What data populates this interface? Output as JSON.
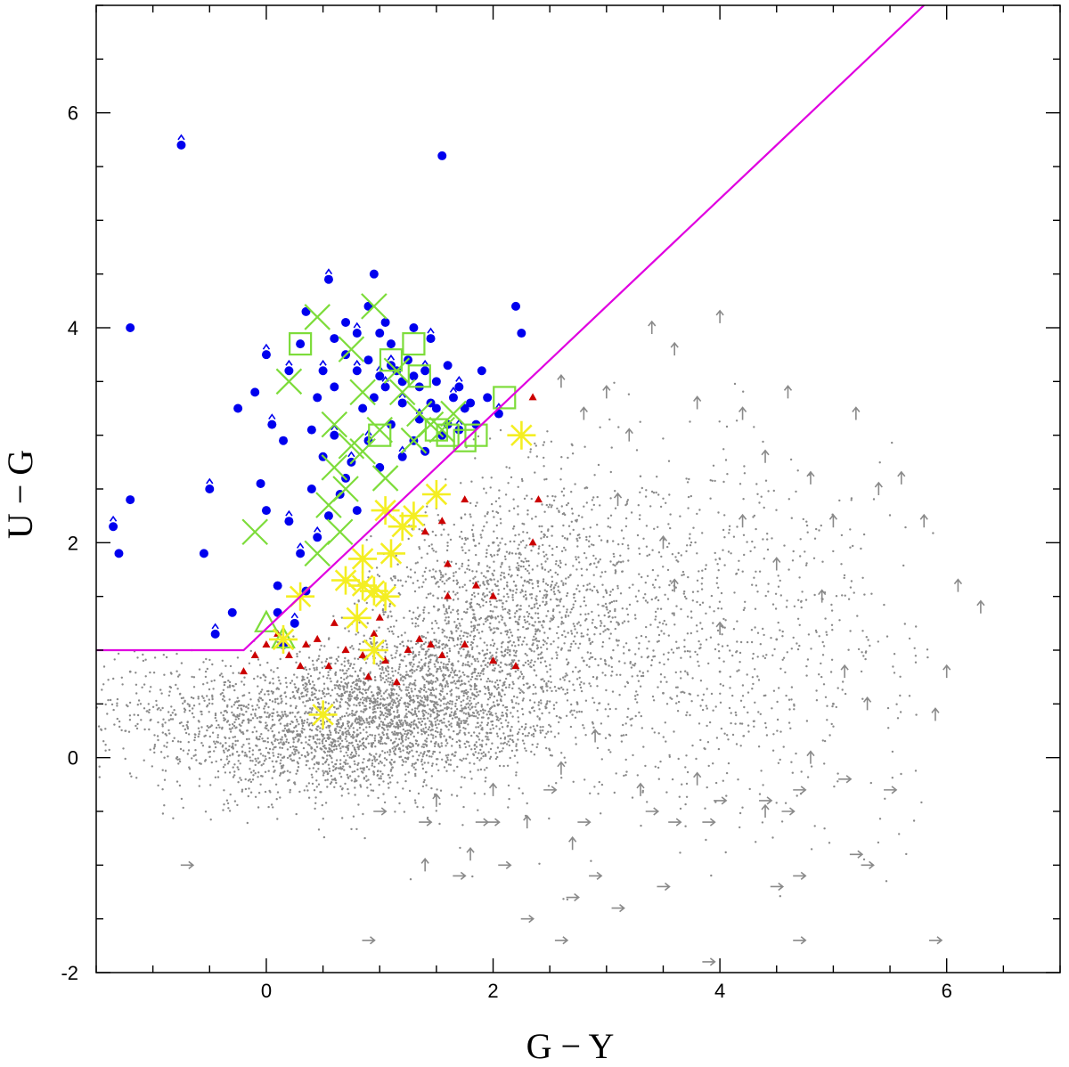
{
  "chart_data": {
    "type": "scatter",
    "xlabel": "G − Y",
    "ylabel": "U − G",
    "xlim": [
      -1.5,
      7.0
    ],
    "ylim": [
      -2.0,
      7.0
    ],
    "x_ticks": [
      0,
      2,
      4,
      6
    ],
    "y_ticks": [
      -2,
      0,
      2,
      4,
      6
    ],
    "x_tick_labels": [
      "0",
      "2",
      "4",
      "6"
    ],
    "y_tick_labels": [
      "-2",
      "0",
      "2",
      "4",
      "6"
    ],
    "x_minor_step": 0.5,
    "y_minor_step": 0.5,
    "grid": false,
    "legend": "none",
    "selection_line": {
      "color": "#e000e0",
      "points": [
        [
          -1.5,
          1.0
        ],
        [
          -0.2,
          1.0
        ],
        [
          5.8,
          7.0
        ]
      ]
    },
    "series": [
      {
        "marker": "dot",
        "color": "#8a8a8a",
        "description_points": [
          [
            -1.2,
            0.8
          ],
          [
            -0.8,
            0.4
          ],
          [
            -0.5,
            0.1
          ],
          [
            0.0,
            0.5
          ],
          [
            0.3,
            0.2
          ],
          [
            0.6,
            0.4
          ],
          [
            0.8,
            0.2
          ],
          [
            1.0,
            0.6
          ],
          [
            1.2,
            0.3
          ],
          [
            1.5,
            0.9
          ],
          [
            1.8,
            1.4
          ],
          [
            2.0,
            2.0
          ],
          [
            2.2,
            1.6
          ],
          [
            2.5,
            1.2
          ],
          [
            2.8,
            0.9
          ],
          [
            3.0,
            1.4
          ],
          [
            3.2,
            1.0
          ],
          [
            3.5,
            0.6
          ],
          [
            4.0,
            0.8
          ],
          [
            4.5,
            1.1
          ],
          [
            5.0,
            0.5
          ]
        ]
      },
      {
        "marker": "arrow-up",
        "color": "#8a8a8a",
        "points": [
          [
            2.6,
            3.5
          ],
          [
            2.8,
            3.2
          ],
          [
            3.0,
            3.4
          ],
          [
            3.2,
            3.0
          ],
          [
            3.4,
            4.0
          ],
          [
            3.6,
            3.8
          ],
          [
            3.8,
            3.3
          ],
          [
            4.0,
            4.1
          ],
          [
            4.2,
            3.2
          ],
          [
            4.4,
            2.8
          ],
          [
            4.6,
            3.4
          ],
          [
            4.8,
            2.6
          ],
          [
            5.0,
            2.2
          ],
          [
            5.2,
            3.2
          ],
          [
            5.4,
            2.5
          ],
          [
            5.6,
            2.6
          ],
          [
            5.8,
            2.2
          ],
          [
            6.1,
            1.6
          ],
          [
            6.3,
            1.4
          ],
          [
            5.9,
            0.4
          ],
          [
            6.0,
            0.8
          ],
          [
            5.3,
            0.5
          ],
          [
            4.8,
            0.0
          ],
          [
            4.4,
            -0.5
          ],
          [
            3.8,
            -0.2
          ],
          [
            3.3,
            -0.3
          ],
          [
            2.9,
            0.2
          ],
          [
            2.6,
            -0.1
          ],
          [
            3.6,
            1.6
          ],
          [
            4.0,
            1.2
          ],
          [
            4.5,
            1.8
          ],
          [
            4.9,
            1.5
          ],
          [
            5.1,
            0.8
          ],
          [
            3.1,
            2.4
          ],
          [
            3.5,
            2.0
          ],
          [
            4.2,
            2.2
          ],
          [
            2.0,
            -0.3
          ],
          [
            2.3,
            -0.6
          ],
          [
            1.5,
            -0.4
          ],
          [
            1.8,
            -0.9
          ],
          [
            1.4,
            -1.0
          ],
          [
            2.7,
            -0.8
          ]
        ]
      },
      {
        "marker": "arrow-right",
        "color": "#8a8a8a",
        "points": [
          [
            -0.7,
            -1.0
          ],
          [
            1.0,
            -0.5
          ],
          [
            1.4,
            -0.6
          ],
          [
            1.9,
            -0.6
          ],
          [
            2.5,
            -0.3
          ],
          [
            3.4,
            -0.5
          ],
          [
            3.9,
            -0.6
          ],
          [
            4.6,
            -0.5
          ],
          [
            4.7,
            -0.3
          ],
          [
            5.1,
            -0.2
          ],
          [
            5.5,
            -0.3
          ],
          [
            5.2,
            -0.9
          ],
          [
            5.3,
            -1.0
          ],
          [
            4.5,
            -1.2
          ],
          [
            4.7,
            -1.1
          ],
          [
            3.5,
            -1.2
          ],
          [
            2.9,
            -1.1
          ],
          [
            3.1,
            -1.4
          ],
          [
            2.7,
            -1.3
          ],
          [
            2.1,
            -1.0
          ],
          [
            2.3,
            -1.5
          ],
          [
            2.6,
            -1.7
          ],
          [
            0.9,
            -1.7
          ],
          [
            1.7,
            -1.1
          ],
          [
            3.9,
            -1.9
          ],
          [
            4.7,
            -1.7
          ],
          [
            5.9,
            -1.7
          ],
          [
            2.0,
            -0.6
          ],
          [
            2.8,
            -0.6
          ],
          [
            3.6,
            -0.6
          ],
          [
            4.0,
            -0.4
          ],
          [
            4.4,
            -0.4
          ]
        ]
      },
      {
        "marker": "filled-circle",
        "color": "#0000ee",
        "points": [
          [
            -0.75,
            5.7
          ],
          [
            1.55,
            5.6
          ],
          [
            -1.2,
            4.0
          ],
          [
            -1.35,
            2.15
          ],
          [
            -1.3,
            1.9
          ],
          [
            -1.2,
            2.4
          ],
          [
            -0.5,
            2.5
          ],
          [
            -0.55,
            1.9
          ],
          [
            -0.3,
            1.35
          ],
          [
            -0.45,
            1.15
          ],
          [
            -0.25,
            3.25
          ],
          [
            -0.1,
            3.4
          ],
          [
            0.0,
            3.75
          ],
          [
            0.15,
            2.95
          ],
          [
            0.1,
            1.6
          ],
          [
            0.2,
            2.2
          ],
          [
            0.35,
            4.15
          ],
          [
            0.45,
            3.35
          ],
          [
            0.55,
            4.45
          ],
          [
            0.6,
            3.9
          ],
          [
            0.7,
            4.05
          ],
          [
            0.8,
            3.6
          ],
          [
            0.9,
            4.2
          ],
          [
            0.95,
            4.5
          ],
          [
            1.0,
            3.55
          ],
          [
            1.05,
            4.05
          ],
          [
            1.1,
            3.85
          ],
          [
            1.2,
            3.3
          ],
          [
            1.3,
            4.0
          ],
          [
            1.35,
            3.45
          ],
          [
            1.45,
            3.9
          ],
          [
            1.5,
            3.25
          ],
          [
            1.6,
            3.65
          ],
          [
            1.7,
            3.05
          ],
          [
            1.8,
            3.3
          ],
          [
            1.9,
            3.6
          ],
          [
            2.05,
            3.2
          ],
          [
            2.2,
            4.2
          ],
          [
            2.25,
            3.95
          ],
          [
            0.3,
            1.9
          ],
          [
            0.4,
            2.5
          ],
          [
            0.5,
            2.8
          ],
          [
            0.6,
            3.0
          ],
          [
            0.7,
            2.6
          ],
          [
            0.8,
            2.3
          ],
          [
            0.9,
            2.95
          ],
          [
            1.0,
            2.7
          ],
          [
            1.1,
            3.1
          ],
          [
            1.2,
            2.8
          ],
          [
            1.3,
            2.95
          ],
          [
            1.4,
            2.85
          ],
          [
            0.25,
            1.25
          ],
          [
            0.15,
            1.05
          ],
          [
            0.35,
            1.55
          ],
          [
            0.45,
            2.05
          ],
          [
            0.55,
            2.25
          ],
          [
            0.65,
            2.45
          ],
          [
            0.75,
            2.75
          ],
          [
            0.85,
            3.25
          ],
          [
            0.95,
            3.35
          ],
          [
            1.05,
            3.45
          ],
          [
            1.15,
            3.6
          ],
          [
            1.25,
            3.7
          ],
          [
            1.35,
            3.15
          ],
          [
            1.45,
            3.3
          ],
          [
            1.55,
            3.0
          ],
          [
            1.65,
            3.35
          ],
          [
            1.75,
            3.25
          ],
          [
            0.0,
            2.3
          ],
          [
            0.05,
            3.1
          ],
          [
            -0.05,
            2.55
          ],
          [
            0.1,
            1.35
          ],
          [
            0.2,
            3.6
          ],
          [
            0.3,
            3.85
          ],
          [
            0.4,
            3.05
          ],
          [
            0.5,
            3.6
          ],
          [
            0.6,
            3.45
          ],
          [
            0.7,
            3.75
          ],
          [
            0.8,
            3.95
          ],
          [
            0.9,
            3.7
          ],
          [
            1.0,
            3.95
          ],
          [
            1.1,
            3.65
          ],
          [
            1.2,
            3.5
          ],
          [
            1.3,
            3.55
          ],
          [
            1.4,
            3.6
          ],
          [
            1.5,
            3.5
          ],
          [
            1.6,
            3.1
          ],
          [
            1.7,
            3.45
          ],
          [
            1.85,
            3.1
          ],
          [
            1.95,
            3.35
          ]
        ]
      },
      {
        "marker": "filled-triangle",
        "color": "#cc0000",
        "points": [
          [
            -0.2,
            0.8
          ],
          [
            -0.1,
            0.95
          ],
          [
            0.0,
            1.05
          ],
          [
            0.1,
            1.15
          ],
          [
            0.2,
            0.95
          ],
          [
            0.35,
            1.05
          ],
          [
            0.45,
            1.1
          ],
          [
            0.55,
            0.85
          ],
          [
            0.6,
            1.25
          ],
          [
            0.7,
            1.0
          ],
          [
            0.85,
            0.95
          ],
          [
            0.95,
            1.15
          ],
          [
            1.05,
            0.9
          ],
          [
            1.15,
            0.7
          ],
          [
            1.25,
            1.0
          ],
          [
            1.35,
            1.1
          ],
          [
            1.45,
            1.05
          ],
          [
            1.55,
            0.95
          ],
          [
            1.75,
            1.05
          ],
          [
            1.85,
            1.6
          ],
          [
            1.75,
            2.4
          ],
          [
            1.55,
            2.2
          ],
          [
            1.6,
            1.8
          ],
          [
            1.6,
            1.5
          ],
          [
            2.0,
            1.5
          ],
          [
            2.0,
            0.9
          ],
          [
            2.2,
            0.85
          ],
          [
            2.35,
            2.0
          ],
          [
            2.4,
            2.4
          ],
          [
            1.4,
            2.1
          ],
          [
            2.35,
            3.35
          ],
          [
            1.0,
            1.3
          ],
          [
            0.3,
            0.85
          ],
          [
            0.9,
            0.75
          ]
        ]
      },
      {
        "marker": "cross",
        "color": "#7ddc3a",
        "points": [
          [
            0.95,
            4.2
          ],
          [
            0.45,
            4.1
          ],
          [
            0.75,
            3.8
          ],
          [
            1.15,
            3.6
          ],
          [
            0.85,
            3.4
          ],
          [
            1.2,
            3.4
          ],
          [
            0.6,
            3.1
          ],
          [
            1.0,
            3.05
          ],
          [
            0.75,
            2.9
          ],
          [
            1.35,
            3.2
          ],
          [
            1.45,
            3.1
          ],
          [
            0.85,
            2.85
          ],
          [
            1.05,
            2.6
          ],
          [
            0.6,
            2.7
          ],
          [
            0.7,
            2.5
          ],
          [
            0.55,
            2.35
          ],
          [
            0.65,
            2.1
          ],
          [
            0.45,
            1.9
          ],
          [
            -0.1,
            2.1
          ],
          [
            0.2,
            3.5
          ],
          [
            1.3,
            2.95
          ],
          [
            1.55,
            3.05
          ],
          [
            1.65,
            3.2
          ]
        ]
      },
      {
        "marker": "open-square",
        "color": "#7ddc3a",
        "points": [
          [
            0.3,
            3.85
          ],
          [
            1.3,
            3.85
          ],
          [
            1.35,
            3.55
          ],
          [
            1.1,
            3.7
          ],
          [
            1.0,
            3.0
          ],
          [
            1.6,
            3.0
          ],
          [
            1.75,
            2.95
          ],
          [
            1.85,
            3.0
          ],
          [
            1.5,
            3.05
          ],
          [
            2.1,
            3.35
          ]
        ]
      },
      {
        "marker": "open-triangle",
        "color": "#7ddc3a",
        "points": [
          [
            0.0,
            1.25
          ],
          [
            0.15,
            1.1
          ]
        ]
      },
      {
        "marker": "asterisk",
        "color": "#f4ee22",
        "points": [
          [
            2.25,
            3.0
          ],
          [
            1.5,
            2.45
          ],
          [
            1.05,
            2.3
          ],
          [
            1.3,
            2.25
          ],
          [
            1.2,
            2.15
          ],
          [
            0.85,
            1.85
          ],
          [
            1.1,
            1.9
          ],
          [
            0.7,
            1.65
          ],
          [
            0.85,
            1.6
          ],
          [
            0.95,
            1.55
          ],
          [
            1.05,
            1.5
          ],
          [
            0.3,
            1.5
          ],
          [
            0.8,
            1.3
          ],
          [
            0.15,
            1.1
          ],
          [
            0.95,
            1.0
          ],
          [
            0.5,
            0.4
          ]
        ]
      }
    ]
  }
}
